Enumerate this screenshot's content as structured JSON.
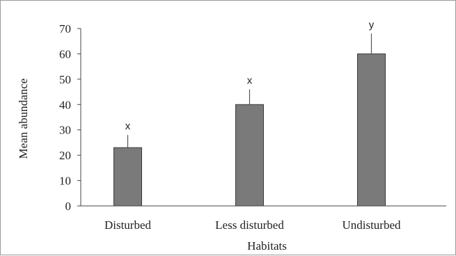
{
  "chart_data": {
    "type": "bar",
    "categories": [
      "Disturbed",
      "Less disturbed",
      "Undisturbed"
    ],
    "values": [
      23,
      40,
      60
    ],
    "error_upper": [
      28,
      46,
      68
    ],
    "letters": [
      "x",
      "x",
      "y"
    ],
    "xlabel": "Habitats",
    "ylabel": "Mean abundance",
    "ylim": [
      0,
      70
    ],
    "yticks": [
      0,
      10,
      20,
      30,
      40,
      50,
      60,
      70
    ],
    "grid": false,
    "bar_color": "#7a7a7a"
  }
}
